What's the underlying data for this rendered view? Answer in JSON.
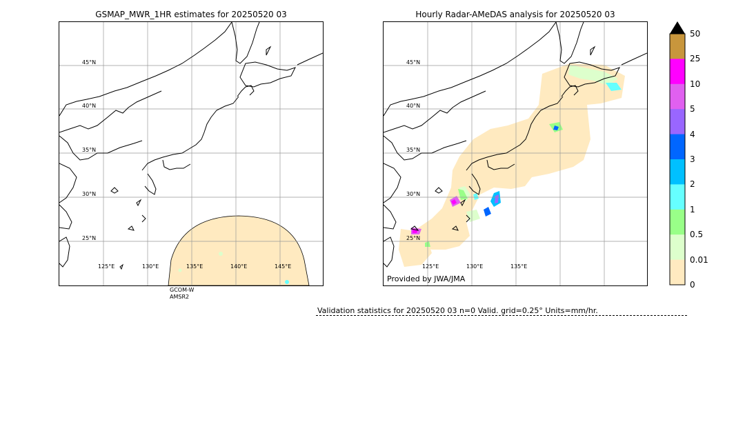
{
  "left_panel": {
    "title": "GSMAP_MWR_1HR estimates for 20250520 03",
    "lat_labels": [
      "45°N",
      "40°N",
      "35°N",
      "30°N",
      "25°N"
    ],
    "lon_labels": [
      "125°E",
      "130°E",
      "135°E",
      "140°E",
      "145°E"
    ],
    "sensor_lines": [
      "GCOM-W",
      "AMSR2"
    ]
  },
  "right_panel": {
    "title": "Hourly Radar-AMeDAS analysis for 20250520 03",
    "lat_labels": [
      "45°N",
      "40°N",
      "35°N",
      "30°N",
      "25°N"
    ],
    "lon_labels": [
      "125°E",
      "130°E",
      "135°E"
    ],
    "credit": "Provided by JWA/JMA"
  },
  "colorbar": {
    "labels": [
      "50",
      "25",
      "10",
      "5",
      "4",
      "3",
      "2",
      "1",
      "0.5",
      "0.01",
      "0"
    ],
    "colors": [
      "#c8963c",
      "#ff00ff",
      "#e060f0",
      "#9966ff",
      "#0066ff",
      "#00c0ff",
      "#66ffff",
      "#99ff88",
      "#ddffcc",
      "#ffeac0"
    ],
    "extend_color": "#000000"
  },
  "footer": {
    "validation": "Validation statistics for 20250520 03  n=0 Valid. grid=0.25° Units=mm/hr."
  }
}
